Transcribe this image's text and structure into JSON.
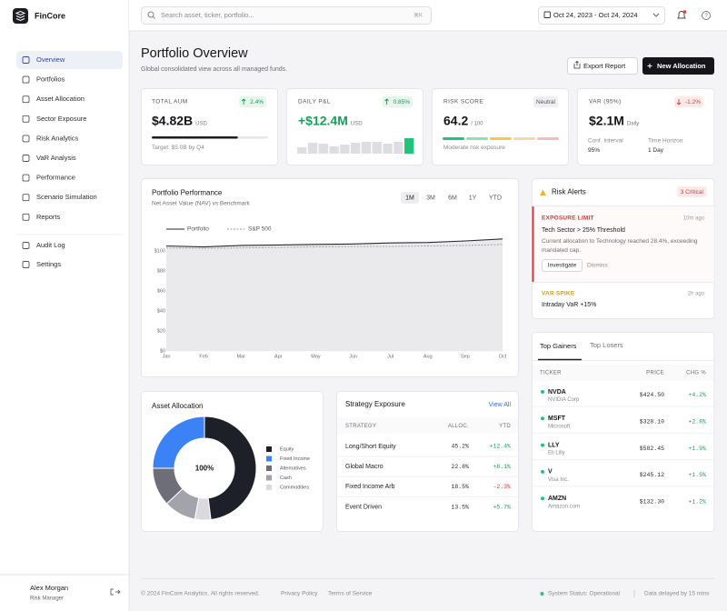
{
  "sidebar": {
    "brand": "FinCore",
    "nav": [
      "Overview",
      "Portfolios",
      "Asset Allocation",
      "Sector Exposure",
      "Risk Analytics",
      "VaR Analysis",
      "Performance",
      "Scenario Simulation",
      "Reports"
    ],
    "nav_secondary": [
      "Audit Log",
      "Settings"
    ],
    "user": {
      "name": "Alex Morgan",
      "role": "Risk Manager"
    }
  },
  "topbar": {
    "search_placeholder": "Search asset, ticker, portfolio...",
    "shortcut": "⌘K",
    "date_range": "Oct 24, 2023 - Oct 24, 2024"
  },
  "header": {
    "title": "Portfolio Overview",
    "subtitle": "Global consolidated view across all managed funds.",
    "actions": [
      "Export Report",
      "New Allocation"
    ]
  },
  "kpis": [
    {
      "label": "TOTAL AUM",
      "badge": "2.4%",
      "value": "$4.82B",
      "unit": "USD",
      "note": "Target: $5.0B by Q4",
      "progress": 74
    },
    {
      "label": "DAILY P&L",
      "badge": "0.85%",
      "value": "+$12.4M",
      "unit": "USD",
      "bars": [
        7,
        12,
        11,
        8,
        10,
        12,
        13,
        13,
        11,
        13,
        17
      ]
    },
    {
      "label": "RISK SCORE",
      "badge": "Neutral",
      "value": "64.2",
      "unit": "/ 100",
      "note": "Moderate risk exposure"
    },
    {
      "label": "VAR (95%)",
      "badge": "-1.2%",
      "value": "$2.1M",
      "unit": "Daily",
      "details": [
        {
          "label": "Conf. Interval",
          "value": "95%"
        },
        {
          "label": "Time Horizon",
          "value": "1 Day"
        }
      ]
    }
  ],
  "chart_data": [
    {
      "type": "line",
      "title": "Portfolio Performance",
      "subtitle": "Net Asset Value (NAV) vs Benchmark",
      "ranges": [
        "1M",
        "3M",
        "6M",
        "1Y",
        "YTD"
      ],
      "categories": [
        "Jan",
        "Feb",
        "Mar",
        "Apr",
        "May",
        "Jun",
        "Jul",
        "Aug",
        "Sep",
        "Oct"
      ],
      "series": [
        {
          "name": "Portfolio",
          "color": "#2a2a2e",
          "values": [
            105,
            104,
            105.5,
            106,
            106.5,
            107,
            108,
            108.5,
            110,
            112
          ]
        },
        {
          "name": "S&P 500",
          "color": "#9a9aa0",
          "values": [
            103,
            102.5,
            103,
            103.5,
            104,
            104.5,
            104.5,
            105,
            105.5,
            106.5
          ]
        }
      ],
      "ylim": [
        0,
        115
      ],
      "yticks": [
        {
          "value": 0,
          "label": "$0"
        },
        {
          "value": 20,
          "label": "$20"
        },
        {
          "value": 40,
          "label": "$40"
        },
        {
          "value": 60,
          "label": "$60"
        },
        {
          "value": 80,
          "label": "$80"
        },
        {
          "value": 100,
          "label": "$100"
        }
      ],
      "grid": true
    },
    {
      "type": "pie",
      "title": "Asset Allocation",
      "center_label": "100%",
      "categories": [
        "Equity",
        "Fixed Income",
        "Alternatives",
        "Cash",
        "Commodities"
      ],
      "values": [
        48,
        25,
        12,
        10,
        5
      ],
      "colors": [
        "#1e2029",
        "#3b82f6",
        "#6e6e78",
        "#a3a3ab",
        "#d9d9de"
      ]
    }
  ],
  "risk_alerts": {
    "title": "Risk Alerts",
    "badge": "3 Critical",
    "items": [
      {
        "type": "EXPOSURE LIMIT",
        "time": "10m ago",
        "title": "Tech Sector > 25% Threshold",
        "description": "Current allocation to Technology reached 28.4%, exceeding mandated cap.",
        "actions": [
          "Investigate",
          "Dismiss"
        ]
      },
      {
        "type": "VAR SPIKE",
        "time": "2h ago",
        "title": "Intraday VaR +15%"
      }
    ]
  },
  "movers": {
    "tabs": [
      "Top Gainers",
      "Top Losers"
    ],
    "columns": [
      "TICKER",
      "PRICE",
      "CHG %"
    ],
    "rows": [
      [
        "NVDA",
        "NVIDIA Corp",
        "$424.50",
        "+4.2%"
      ],
      [
        "MSFT",
        "Microsoft",
        "$328.10",
        "+2.8%"
      ],
      [
        "LLY",
        "Eli Lilly",
        "$582.45",
        "+1.9%"
      ],
      [
        "V",
        "Visa Inc.",
        "$245.12",
        "+1.5%"
      ],
      [
        "AMZN",
        "Amazon.com",
        "$132.30",
        "+1.2%"
      ]
    ]
  },
  "strategy": {
    "title": "Strategy Exposure",
    "link": "View All",
    "columns": [
      "STRATEGY",
      "ALLOC.",
      "YTD"
    ],
    "rows": [
      [
        "Long/Short Equity",
        "45.2%",
        "+12.4%"
      ],
      [
        "Global Macro",
        "22.8%",
        "+8.1%"
      ],
      [
        "Fixed Income Arb",
        "18.5%",
        "-2.3%"
      ],
      [
        "Event Driven",
        "13.5%",
        "+5.7%"
      ]
    ]
  },
  "footer": {
    "copyright": "© 2024 FinCore Analytics. All rights reserved.",
    "links": [
      "Privacy Policy",
      "Terms of Service"
    ],
    "status": "System Status: Operational",
    "delay": "Data delayed by 15 mins"
  }
}
